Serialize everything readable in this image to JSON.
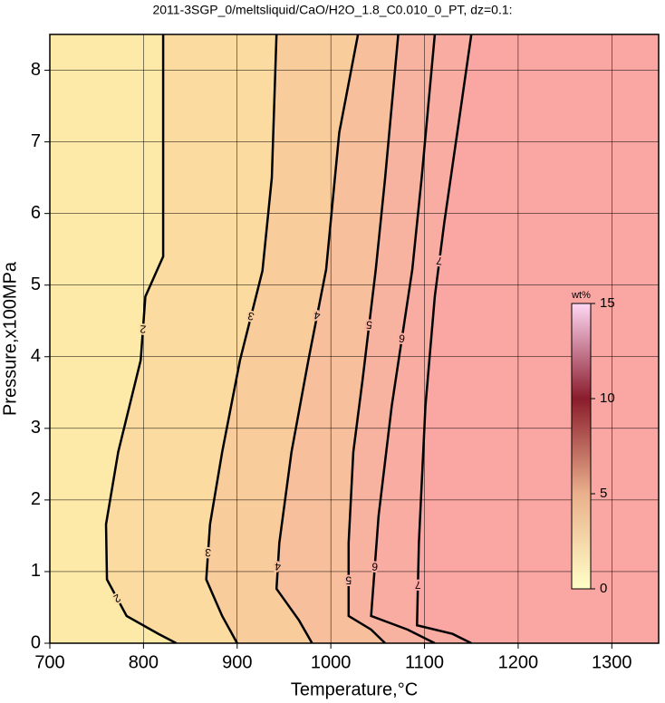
{
  "chart_data": {
    "type": "contour",
    "title": "2011-3SGP_0/meltsliquid/CaO/H2O_1.8_C0.010_0_PT, dz=0.1:",
    "x_label": "Temperature,°C",
    "y_label": "Pressure,x100MPa",
    "xlim": [
      700,
      1350
    ],
    "ylim": [
      0,
      8.5
    ],
    "xticks": [
      700,
      800,
      900,
      1000,
      1100,
      1200,
      1300
    ],
    "yticks": [
      0,
      1,
      2,
      3,
      4,
      5,
      6,
      7,
      8
    ],
    "grid": true,
    "band_colors": [
      "#fdeaa8",
      "#fbdba0",
      "#f9cc9c",
      "#f8bf9c",
      "#f8b3a0",
      "#f9aca2",
      "#faa6a2"
    ],
    "contours": [
      {
        "level": 2,
        "x": [
          821,
          821,
          802,
          797,
          773,
          760,
          761,
          782,
          816,
          835
        ],
        "y": [
          8.5,
          5.4,
          4.84,
          3.95,
          2.67,
          1.66,
          0.89,
          0.38,
          0.13,
          0
        ]
      },
      {
        "level": 3,
        "x": [
          942,
          937,
          927,
          903,
          884,
          871,
          867,
          884,
          900
        ],
        "y": [
          8.5,
          6.5,
          5.2,
          3.95,
          2.67,
          1.66,
          0.89,
          0.38,
          0
        ]
      },
      {
        "level": 4,
        "x": [
          1029,
          1009,
          995,
          976,
          958,
          945,
          942,
          966,
          980
        ],
        "y": [
          8.5,
          7.13,
          5.22,
          3.95,
          2.67,
          1.4,
          0.76,
          0.32,
          0
        ]
      },
      {
        "level": 5,
        "x": [
          1072,
          1058,
          1048,
          1034,
          1024,
          1019,
          1019,
          1043,
          1058
        ],
        "y": [
          8.5,
          6.5,
          5.22,
          3.69,
          2.67,
          1.4,
          0.38,
          0.19,
          0
        ]
      },
      {
        "level": 6,
        "x": [
          1111,
          1097,
          1087,
          1065,
          1051,
          1043,
          1082,
          1111
        ],
        "y": [
          8.5,
          6.5,
          5.22,
          3.31,
          1.78,
          0.38,
          0.19,
          0
        ]
      },
      {
        "level": 7,
        "x": [
          1150,
          1135,
          1121,
          1111,
          1101,
          1094,
          1092,
          1130,
          1150
        ],
        "y": [
          8.5,
          7.13,
          5.86,
          4.84,
          3.31,
          1.4,
          0.25,
          0.13,
          0
        ]
      }
    ],
    "colorbar": {
      "label": "wt%",
      "lim": [
        0,
        15
      ],
      "ticks": [
        0,
        5,
        10,
        15
      ],
      "colors": [
        "#ffffc8",
        "#eab08c",
        "#8a1c2c",
        "#ffd8f4"
      ]
    }
  }
}
